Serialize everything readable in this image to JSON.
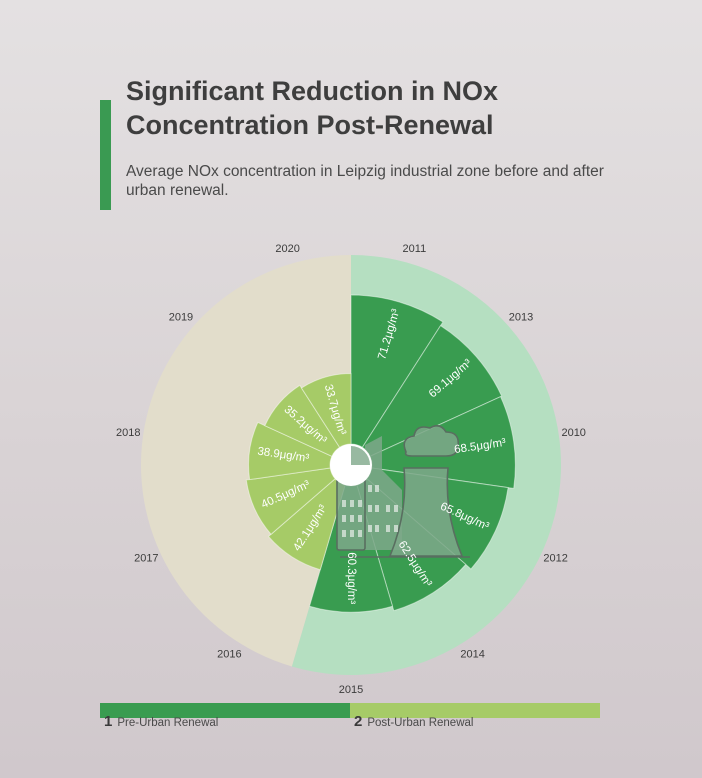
{
  "header": {
    "title": "Significant Reduction in NOx Concentration Post-Renewal",
    "subtitle": "Average NOx concentration in Leipzig industrial zone before and after urban renewal."
  },
  "colors": {
    "pre": "#399c50",
    "post": "#a6cb67",
    "pre_outer": "#b5dfc1",
    "post_outer": "#e2ddcb",
    "accent": "#3a9a52",
    "icon": "#7ea88a"
  },
  "legend": [
    {
      "number": "1",
      "label": "Pre-Urban Renewal",
      "color": "#399c50"
    },
    {
      "number": "2",
      "label": "Post-Urban Renewal",
      "color": "#a6cb67"
    }
  ],
  "icon": "factory-emissions-icon",
  "chart_data": {
    "type": "radial-bar",
    "unit": "μg/m³",
    "series": [
      {
        "name": "Pre-Urban Renewal",
        "categories": [
          "2011",
          "2013",
          "2010",
          "2012",
          "2014",
          "2015"
        ],
        "values": [
          71.2,
          69.1,
          68.5,
          65.8,
          62.5,
          60.3
        ]
      },
      {
        "name": "Post-Urban Renewal",
        "categories": [
          "2016",
          "2017",
          "2018",
          "2019",
          "2020"
        ],
        "values": [
          42.1,
          40.5,
          38.9,
          35.2,
          33.7
        ]
      }
    ]
  }
}
